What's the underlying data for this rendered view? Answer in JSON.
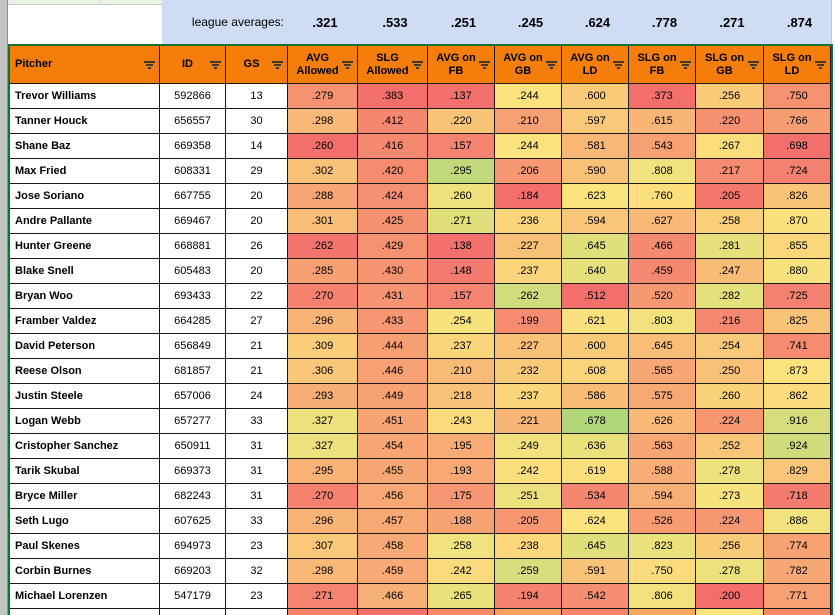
{
  "sheet": {
    "league_row": {
      "label": "league averages:",
      "values": [
        ".321",
        ".533",
        ".251",
        ".245",
        ".624",
        ".778",
        ".271",
        ".874"
      ]
    },
    "columns": [
      "Pitcher",
      "ID",
      "GS",
      "AVG Allowed",
      "SLG Allowed",
      "AVG on FB",
      "AVG on GB",
      "AVG on LD",
      "SLG on FB",
      "SLG on GB",
      "SLG on LD"
    ],
    "filter_icon_name": "filter-funnel",
    "rows": [
      {
        "pitcher": "Trevor Williams",
        "id": "592866",
        "gs": "13",
        "stats": [
          ".279",
          ".383",
          ".137",
          ".244",
          ".600",
          ".373",
          ".256",
          ".750"
        ]
      },
      {
        "pitcher": "Tanner Houck",
        "id": "656557",
        "gs": "30",
        "stats": [
          ".298",
          ".412",
          ".220",
          ".210",
          ".597",
          ".615",
          ".220",
          ".766"
        ]
      },
      {
        "pitcher": "Shane Baz",
        "id": "669358",
        "gs": "14",
        "stats": [
          ".260",
          ".416",
          ".157",
          ".244",
          ".581",
          ".543",
          ".267",
          ".698"
        ]
      },
      {
        "pitcher": "Max Fried",
        "id": "608331",
        "gs": "29",
        "stats": [
          ".302",
          ".420",
          ".295",
          ".206",
          ".590",
          ".808",
          ".217",
          ".724"
        ]
      },
      {
        "pitcher": "Jose Soriano",
        "id": "667755",
        "gs": "20",
        "stats": [
          ".288",
          ".424",
          ".260",
          ".184",
          ".623",
          ".760",
          ".205",
          ".826"
        ]
      },
      {
        "pitcher": "Andre Pallante",
        "id": "669467",
        "gs": "20",
        "stats": [
          ".301",
          ".425",
          ".271",
          ".236",
          ".594",
          ".627",
          ".258",
          ".870"
        ]
      },
      {
        "pitcher": "Hunter Greene",
        "id": "668881",
        "gs": "26",
        "stats": [
          ".262",
          ".429",
          ".138",
          ".227",
          ".645",
          ".466",
          ".281",
          ".855"
        ]
      },
      {
        "pitcher": "Blake Snell",
        "id": "605483",
        "gs": "20",
        "stats": [
          ".285",
          ".430",
          ".148",
          ".237",
          ".640",
          ".459",
          ".247",
          ".880"
        ]
      },
      {
        "pitcher": "Bryan Woo",
        "id": "693433",
        "gs": "22",
        "stats": [
          ".270",
          ".431",
          ".157",
          ".262",
          ".512",
          ".520",
          ".282",
          ".725"
        ]
      },
      {
        "pitcher": "Framber Valdez",
        "id": "664285",
        "gs": "27",
        "stats": [
          ".296",
          ".433",
          ".254",
          ".199",
          ".621",
          ".803",
          ".216",
          ".825"
        ]
      },
      {
        "pitcher": "David Peterson",
        "id": "656849",
        "gs": "21",
        "stats": [
          ".309",
          ".444",
          ".237",
          ".227",
          ".600",
          ".645",
          ".254",
          ".741"
        ]
      },
      {
        "pitcher": "Reese Olson",
        "id": "681857",
        "gs": "21",
        "stats": [
          ".306",
          ".446",
          ".210",
          ".232",
          ".608",
          ".565",
          ".250",
          ".873"
        ]
      },
      {
        "pitcher": "Justin Steele",
        "id": "657006",
        "gs": "24",
        "stats": [
          ".293",
          ".449",
          ".218",
          ".237",
          ".586",
          ".575",
          ".260",
          ".862"
        ]
      },
      {
        "pitcher": "Logan Webb",
        "id": "657277",
        "gs": "33",
        "stats": [
          ".327",
          ".451",
          ".243",
          ".221",
          ".678",
          ".626",
          ".224",
          ".916"
        ]
      },
      {
        "pitcher": "Cristopher Sanchez",
        "id": "650911",
        "gs": "31",
        "stats": [
          ".327",
          ".454",
          ".195",
          ".249",
          ".636",
          ".563",
          ".252",
          ".924"
        ]
      },
      {
        "pitcher": "Tarik Skubal",
        "id": "669373",
        "gs": "31",
        "stats": [
          ".295",
          ".455",
          ".193",
          ".242",
          ".619",
          ".588",
          ".278",
          ".829"
        ]
      },
      {
        "pitcher": "Bryce Miller",
        "id": "682243",
        "gs": "31",
        "stats": [
          ".270",
          ".456",
          ".175",
          ".251",
          ".534",
          ".594",
          ".273",
          ".718"
        ]
      },
      {
        "pitcher": "Seth Lugo",
        "id": "607625",
        "gs": "33",
        "stats": [
          ".296",
          ".457",
          ".188",
          ".205",
          ".624",
          ".526",
          ".224",
          ".886"
        ]
      },
      {
        "pitcher": "Paul Skenes",
        "id": "694973",
        "gs": "23",
        "stats": [
          ".307",
          ".458",
          ".258",
          ".238",
          ".645",
          ".823",
          ".256",
          ".774"
        ]
      },
      {
        "pitcher": "Corbin Burnes",
        "id": "669203",
        "gs": "32",
        "stats": [
          ".298",
          ".459",
          ".242",
          ".259",
          ".591",
          ".750",
          ".278",
          ".782"
        ]
      },
      {
        "pitcher": "Michael Lorenzen",
        "id": "547179",
        "gs": "23",
        "stats": [
          ".271",
          ".466",
          ".265",
          ".194",
          ".542",
          ".806",
          ".200",
          ".771"
        ]
      }
    ],
    "partial_next_row_stat_colors": [
      "#F5826A",
      "#F36F6C",
      "#F58A69",
      "#F7A05F",
      "#F5846A",
      "#F7A95F",
      "#FBE47D",
      "#F58A69"
    ]
  },
  "colors": {
    "header_bg": "#F57D0A",
    "header_text": "#000000",
    "league_band_bg": "#CFDDF4",
    "filter_range_border_green": "#137333",
    "heat_red": "#F36F6C",
    "heat_yellow": "#FBE47D",
    "heat_green": "#64C878",
    "grid_black": "#1A1A1A",
    "gutter_grey": "#C2C2C2",
    "gridline_grey": "#C9C9C9",
    "top_strip_green": "#E9F3E4",
    "cell_white": "#FFFFFF"
  }
}
